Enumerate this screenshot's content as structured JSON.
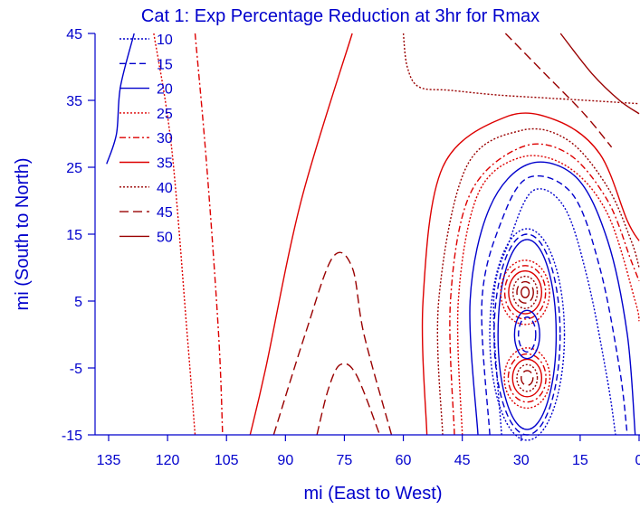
{
  "chart_data": {
    "type": "contour",
    "title": "Cat 1: Exp Percentage Reduction at 3hr for Rmax",
    "xlabel": "mi (East to West)",
    "ylabel": "mi (South to North)",
    "xlim": [
      135,
      0
    ],
    "ylim": [
      -15,
      45
    ],
    "x_ticks": [
      "135",
      "120",
      "105",
      "90",
      "75",
      "60",
      "45",
      "30",
      "15",
      "0"
    ],
    "y_ticks": [
      "45",
      "35",
      "25",
      "15",
      "5",
      "-5",
      "-15"
    ],
    "legend_position": "top-left",
    "legend": [
      {
        "label": "10",
        "color": "#0000cc",
        "dash": "dot"
      },
      {
        "label": "15",
        "color": "#0000cc",
        "dash": "dash"
      },
      {
        "label": "20",
        "color": "#0000cc",
        "dash": "solid"
      },
      {
        "label": "25",
        "color": "#dd0000",
        "dash": "dot"
      },
      {
        "label": "30",
        "color": "#dd0000",
        "dash": "dashdot"
      },
      {
        "label": "35",
        "color": "#dd0000",
        "dash": "solid"
      },
      {
        "label": "40",
        "color": "#990000",
        "dash": "dot"
      },
      {
        "label": "45",
        "color": "#990000",
        "dash": "longdash"
      },
      {
        "label": "50",
        "color": "#990000",
        "dash": "solid"
      }
    ],
    "contours": [
      {
        "level": "20",
        "points": [
          [
            128.5,
            45
          ],
          [
            132,
            37
          ],
          [
            133,
            30
          ],
          [
            135.5,
            25.5
          ]
        ]
      },
      {
        "level": "25",
        "points": [
          [
            123.5,
            45
          ],
          [
            119,
            28
          ],
          [
            115,
            0
          ],
          [
            113,
            -15
          ]
        ]
      },
      {
        "level": "30",
        "points": [
          [
            113,
            45
          ],
          [
            110,
            25
          ],
          [
            107,
            0
          ],
          [
            106,
            -15
          ]
        ]
      },
      {
        "level": "35",
        "points": [
          [
            73,
            45
          ],
          [
            86,
            20
          ],
          [
            95,
            -5
          ],
          [
            99,
            -15
          ]
        ]
      },
      {
        "level": "40",
        "points": [
          [
            60,
            45
          ],
          [
            59,
            40
          ],
          [
            56,
            37
          ],
          [
            48,
            36.5
          ],
          [
            36,
            35.8
          ],
          [
            22,
            35.3
          ],
          [
            8,
            34.8
          ],
          [
            0,
            34.5
          ]
        ]
      },
      {
        "level": "50",
        "points": [
          [
            20,
            45
          ],
          [
            12,
            39
          ],
          [
            5,
            35
          ],
          [
            0,
            33
          ]
        ]
      },
      {
        "level": "45",
        "points": [
          [
            34,
            45
          ],
          [
            24,
            39
          ],
          [
            14,
            33
          ],
          [
            7,
            28
          ]
        ]
      },
      {
        "level": "45",
        "points": [
          [
            93,
            -15
          ],
          [
            85,
            0
          ],
          [
            78,
            11.5
          ],
          [
            73,
            10
          ],
          [
            70,
            0
          ],
          [
            63,
            -15
          ]
        ]
      },
      {
        "level": "45",
        "points": [
          [
            82,
            -15
          ],
          [
            79,
            -8
          ],
          [
            76,
            -4.5
          ],
          [
            72,
            -6
          ],
          [
            66,
            -15
          ]
        ]
      },
      {
        "level": "35",
        "points": [
          [
            54,
            -15
          ],
          [
            55,
            5
          ],
          [
            50,
            25
          ],
          [
            34,
            32.5
          ],
          [
            21,
            32
          ],
          [
            10,
            27
          ],
          [
            3,
            17
          ],
          [
            0,
            14
          ]
        ]
      },
      {
        "level": "40",
        "points": [
          [
            50,
            -15
          ],
          [
            51,
            5
          ],
          [
            44,
            25
          ],
          [
            30,
            30.5
          ],
          [
            18,
            29
          ],
          [
            8,
            22
          ],
          [
            2,
            14
          ],
          [
            0,
            10
          ]
        ]
      },
      {
        "level": "30",
        "points": [
          [
            47,
            -15
          ],
          [
            48,
            5
          ],
          [
            43,
            21
          ],
          [
            30,
            28
          ],
          [
            18,
            27
          ],
          [
            8,
            20
          ],
          [
            2,
            11
          ],
          [
            0,
            8
          ]
        ]
      },
      {
        "level": "25",
        "points": [
          [
            45,
            -15
          ],
          [
            46,
            5
          ],
          [
            41,
            21
          ],
          [
            30,
            26.5
          ],
          [
            18,
            25
          ],
          [
            8,
            18
          ],
          [
            1,
            5
          ],
          [
            0,
            2
          ]
        ]
      },
      {
        "level": "20",
        "points": [
          [
            41,
            -15
          ],
          [
            43,
            5
          ],
          [
            38,
            19
          ],
          [
            28,
            25.5
          ],
          [
            16,
            23.5
          ],
          [
            8,
            14
          ],
          [
            3,
            0
          ],
          [
            1,
            -15
          ]
        ]
      },
      {
        "level": "15",
        "points": [
          [
            38,
            -15
          ],
          [
            40,
            5
          ],
          [
            35,
            17
          ],
          [
            28,
            23.5
          ],
          [
            17,
            21
          ],
          [
            10,
            10
          ],
          [
            5,
            -5
          ],
          [
            3,
            -15
          ]
        ]
      },
      {
        "level": "10",
        "points": [
          [
            35,
            -15
          ],
          [
            37,
            5
          ],
          [
            33,
            14
          ],
          [
            27,
            21.5
          ],
          [
            19,
            19
          ],
          [
            13,
            8
          ],
          [
            8,
            -7
          ],
          [
            6,
            -15
          ]
        ]
      }
    ],
    "closed_contours": [
      {
        "level": "10",
        "cx": 28.5,
        "cy": 0,
        "rx": 9.5,
        "ry": 15.8
      },
      {
        "level": "15",
        "cx": 28.5,
        "cy": 0,
        "rx": 8.4,
        "ry": 15
      },
      {
        "level": "20",
        "cx": 28.5,
        "cy": 0,
        "rx": 7.4,
        "ry": 14.2
      },
      {
        "level": "25",
        "cx": 29,
        "cy": 6.3,
        "rx": 6.2,
        "ry": 4.8
      },
      {
        "level": "30",
        "cx": 29,
        "cy": 6.3,
        "rx": 5.2,
        "ry": 4
      },
      {
        "level": "35",
        "cx": 29,
        "cy": 6.3,
        "rx": 4.2,
        "ry": 3.2
      },
      {
        "level": "40",
        "cx": 29,
        "cy": 6.3,
        "rx": 3.1,
        "ry": 2.4
      },
      {
        "level": "45",
        "cx": 29,
        "cy": 6.3,
        "rx": 2.1,
        "ry": 1.6
      },
      {
        "level": "50",
        "cx": 29,
        "cy": 6.3,
        "rx": 1,
        "ry": 0.8
      },
      {
        "level": "25",
        "cx": 28.5,
        "cy": -6.5,
        "rx": 5.8,
        "ry": 4.5
      },
      {
        "level": "30",
        "cx": 28.5,
        "cy": -6.5,
        "rx": 4.8,
        "ry": 3.6
      },
      {
        "level": "35",
        "cx": 28.5,
        "cy": -6.5,
        "rx": 3.7,
        "ry": 2.8
      },
      {
        "level": "40",
        "cx": 28.5,
        "cy": -6.5,
        "rx": 2.6,
        "ry": 2
      },
      {
        "level": "45",
        "cx": 28.5,
        "cy": -6.5,
        "rx": 1.5,
        "ry": 1.1
      },
      {
        "level": "20",
        "cx": 28.5,
        "cy": 0,
        "rx": 3.2,
        "ry": 3.6
      },
      {
        "level": "15",
        "cx": 28.5,
        "cy": 0,
        "rx": 2.2,
        "ry": 2.6
      }
    ]
  }
}
